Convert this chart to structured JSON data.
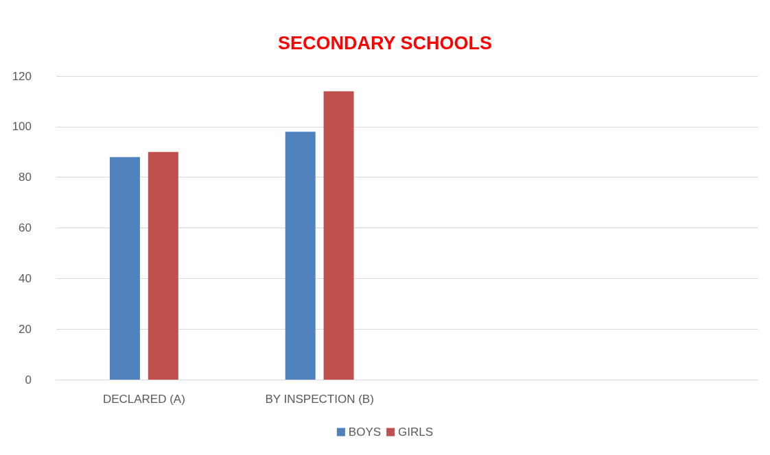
{
  "chart_data": {
    "type": "bar",
    "title": "SECONDARY SCHOOLS",
    "categories": [
      "DECLARED (A)",
      "BY INSPECTION (B)",
      null,
      null
    ],
    "series": [
      {
        "name": "BOYS",
        "color": "#4f81bd",
        "values": [
          88,
          98,
          null,
          null
        ]
      },
      {
        "name": "GIRLS",
        "color": "#c0504d",
        "values": [
          90,
          114,
          null,
          null
        ]
      }
    ],
    "ylim": [
      0,
      120
    ],
    "yticks": [
      0,
      20,
      40,
      60,
      80,
      100,
      120
    ],
    "grid": "y",
    "legend": "bottom"
  }
}
